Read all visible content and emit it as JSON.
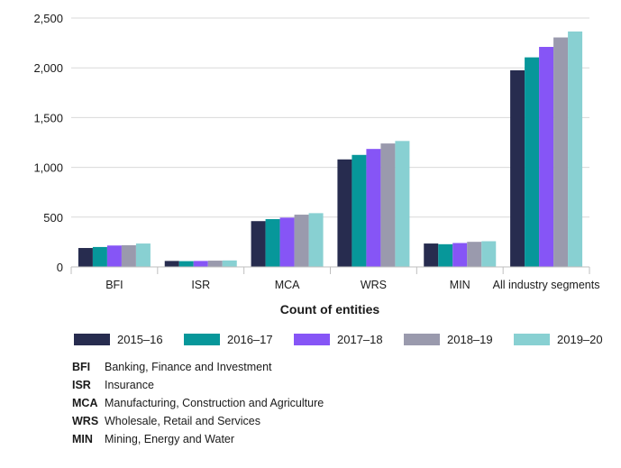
{
  "chart_data": {
    "type": "bar",
    "title": "",
    "xlabel": "Count of entities",
    "ylabel": "",
    "ylim": [
      0,
      2500
    ],
    "yticks": [
      0,
      500,
      1000,
      1500,
      2000,
      2500
    ],
    "ytick_labels": [
      "0",
      "500",
      "1,000",
      "1,500",
      "2,000",
      "2,500"
    ],
    "grid": true,
    "categories": [
      "BFI",
      "ISR",
      "MCA",
      "WRS",
      "MIN",
      "All industry segments"
    ],
    "series": [
      {
        "name": "2015–16",
        "color": "#272c4f",
        "values": [
          190,
          60,
          460,
          1080,
          235,
          1975
        ]
      },
      {
        "name": "2016–17",
        "color": "#07979a",
        "values": [
          200,
          58,
          480,
          1125,
          228,
          2105
        ]
      },
      {
        "name": "2017–18",
        "color": "#8655f6",
        "values": [
          215,
          60,
          495,
          1185,
          240,
          2210
        ]
      },
      {
        "name": "2018–19",
        "color": "#9a9aad",
        "values": [
          218,
          63,
          525,
          1240,
          252,
          2305
        ]
      },
      {
        "name": "2019–20",
        "color": "#88d0d2",
        "values": [
          235,
          65,
          540,
          1265,
          258,
          2365
        ]
      }
    ]
  },
  "abbreviations": [
    {
      "code": "BFI",
      "label": "Banking, Finance and Investment"
    },
    {
      "code": "ISR",
      "label": "Insurance"
    },
    {
      "code": "MCA",
      "label": "Manufacturing, Construction and Agriculture"
    },
    {
      "code": "WRS",
      "label": "Wholesale, Retail and Services"
    },
    {
      "code": "MIN",
      "label": "Mining, Energy and Water"
    }
  ]
}
